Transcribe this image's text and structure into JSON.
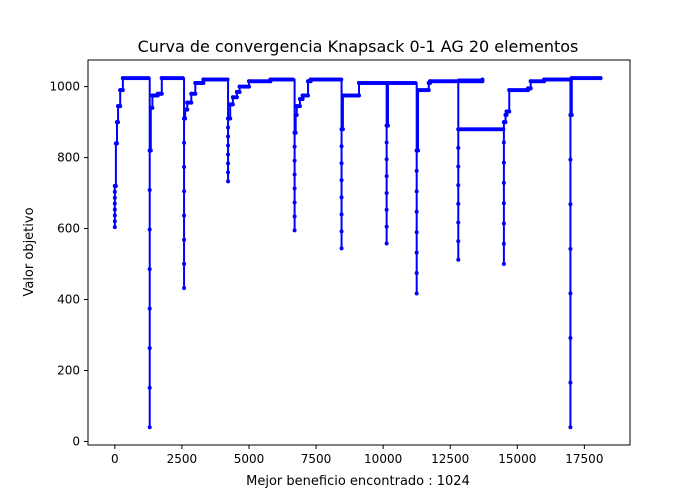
{
  "chart_data": {
    "type": "line",
    "title": "Curva de convergencia Knapsack 0-1 AG 20 elementos",
    "xlabel": "Mejor beneficio encontrado : 1024",
    "ylabel": "Valor objetivo",
    "xlim": [
      -1000,
      19200
    ],
    "ylim": [
      -10,
      1075
    ],
    "xticks": [
      0,
      2500,
      5000,
      7500,
      10000,
      12500,
      15000,
      17500
    ],
    "yticks": [
      0,
      200,
      400,
      600,
      800,
      1000
    ],
    "xtick_labels": [
      "0",
      "2500",
      "5000",
      "7500",
      "10000",
      "12500",
      "15000",
      "17500"
    ],
    "ytick_labels": [
      "0",
      "200",
      "400",
      "600",
      "800",
      "1000"
    ],
    "grid": false,
    "series": [
      {
        "color": "#0000ff",
        "marker": "circle",
        "restarts": [
          {
            "x": 0,
            "low": 604,
            "steps": [
              [
                0,
                720
              ],
              [
                40,
                840
              ],
              [
                80,
                900
              ],
              [
                120,
                945
              ],
              [
                200,
                990
              ],
              [
                300,
                1024
              ]
            ]
          },
          {
            "x": 1300,
            "low": 40,
            "steps": [
              [
                1300,
                820
              ],
              [
                1340,
                940
              ],
              [
                1400,
                975
              ],
              [
                1600,
                980
              ],
              [
                1750,
                1024
              ]
            ]
          },
          {
            "x": 2580,
            "low": 432,
            "steps": [
              [
                2580,
                910
              ],
              [
                2620,
                935
              ],
              [
                2700,
                955
              ],
              [
                2850,
                980
              ],
              [
                3000,
                1010
              ],
              [
                3300,
                1020
              ]
            ]
          },
          {
            "x": 4220,
            "low": 733,
            "steps": [
              [
                4220,
                910
              ],
              [
                4300,
                950
              ],
              [
                4400,
                970
              ],
              [
                4550,
                985
              ],
              [
                4650,
                1000
              ],
              [
                5000,
                1015
              ],
              [
                5800,
                1020
              ]
            ]
          },
          {
            "x": 6700,
            "low": 595,
            "steps": [
              [
                6700,
                870
              ],
              [
                6740,
                920
              ],
              [
                6780,
                945
              ],
              [
                6900,
                965
              ],
              [
                7000,
                975
              ],
              [
                7200,
                1015
              ],
              [
                7300,
                1020
              ]
            ]
          },
          {
            "x": 8450,
            "low": 544,
            "steps": [
              [
                8450,
                880
              ],
              [
                8500,
                975
              ],
              [
                9100,
                1010
              ]
            ]
          },
          {
            "x": 10130,
            "low": 558,
            "steps": [
              [
                10130,
                890
              ],
              [
                10180,
                1010
              ]
            ]
          },
          {
            "x": 11250,
            "low": 417,
            "steps": [
              [
                11250,
                820
              ],
              [
                11300,
                990
              ],
              [
                11700,
                1010
              ],
              [
                11750,
                1015
              ],
              [
                13700,
                1020
              ]
            ]
          },
          {
            "x": 12800,
            "low": 512,
            "steps": [
              [
                12800,
                880
              ]
            ]
          },
          {
            "x": 14500,
            "low": 500,
            "steps": [
              [
                14500,
                900
              ],
              [
                14560,
                920
              ],
              [
                14600,
                930
              ],
              [
                14700,
                990
              ],
              [
                15400,
                995
              ],
              [
                15500,
                1015
              ],
              [
                16000,
                1020
              ]
            ]
          },
          {
            "x": 16980,
            "low": 40,
            "steps": [
              [
                16980,
                920
              ],
              [
                17030,
                1024
              ],
              [
                18100,
                1024
              ]
            ]
          }
        ]
      }
    ]
  }
}
